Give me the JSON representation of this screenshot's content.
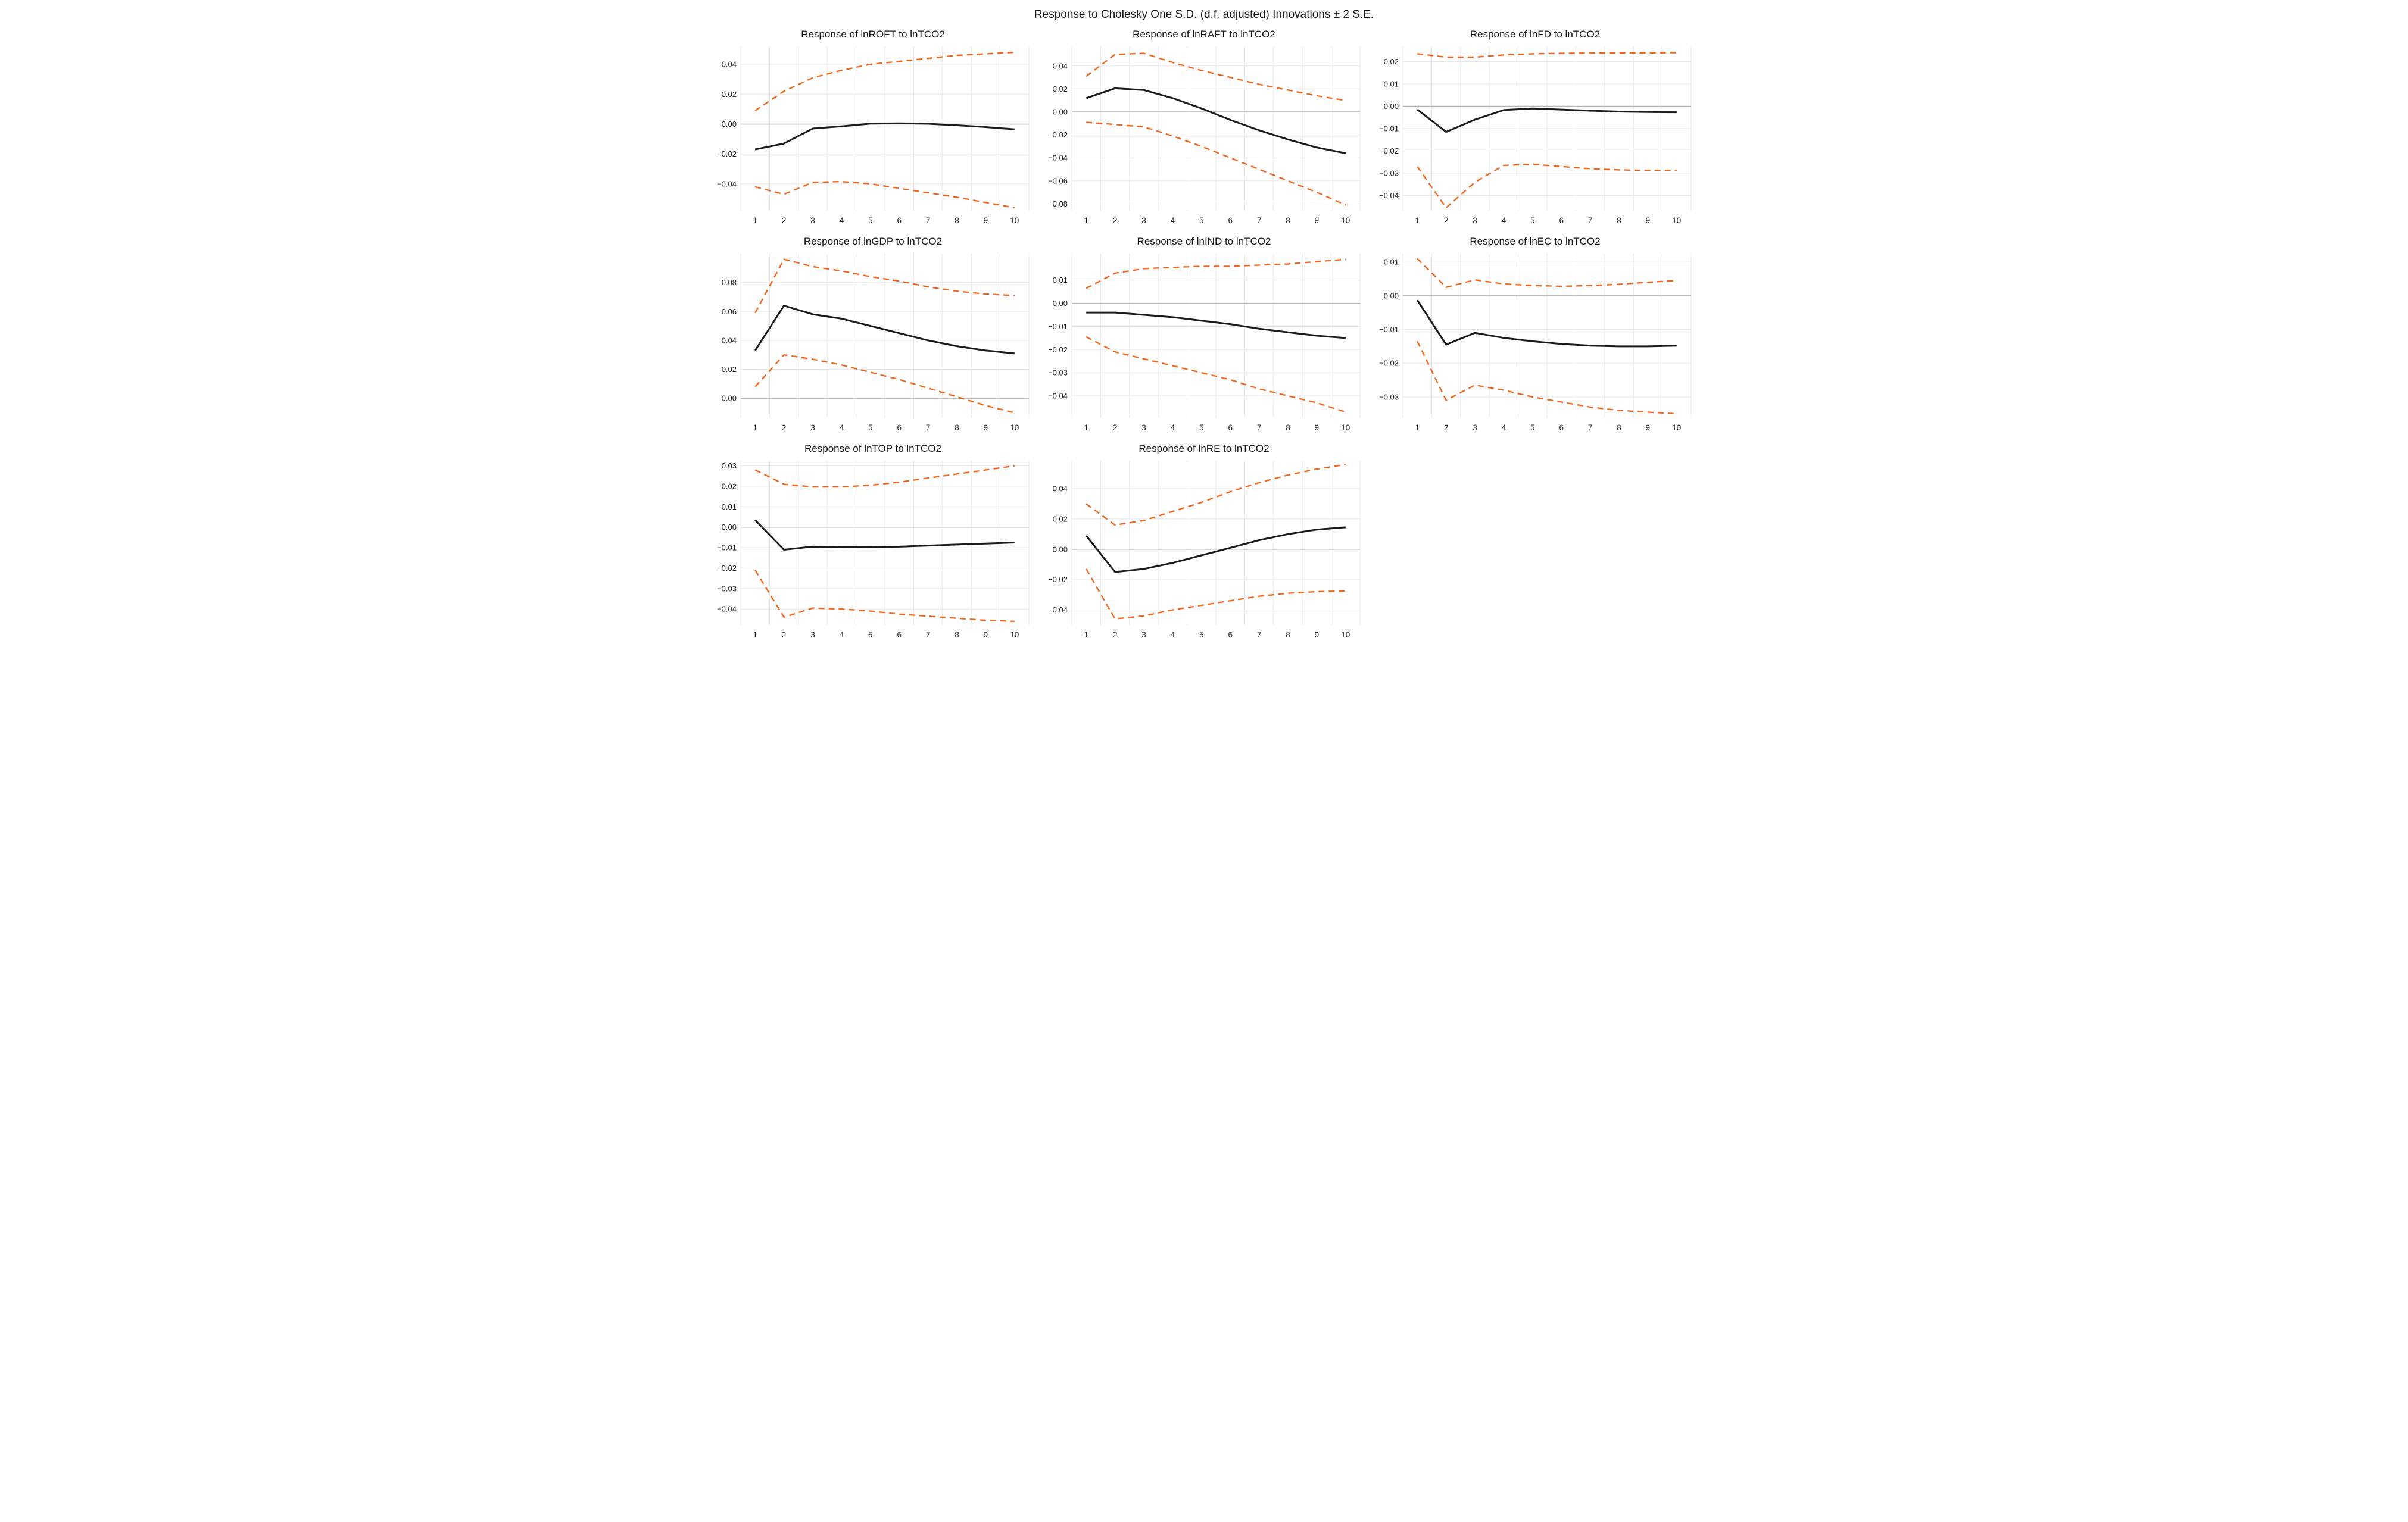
{
  "header": {
    "title": "Response to Cholesky One S.D. (d.f. adjusted) Innovations ± 2 S.E."
  },
  "style": {
    "response_color": "#1b1b1b",
    "band_color": "#f0661c",
    "grid_color": "#e8e8e8",
    "zero_color": "#b5b5b5",
    "background": "#ffffff",
    "text_color": "#1f1f1f"
  },
  "chart_data": [
    {
      "type": "line",
      "title": "Response of lnROFT to lnTCO2",
      "x": [
        1,
        2,
        3,
        4,
        5,
        6,
        7,
        8,
        9,
        10
      ],
      "xlabel": "",
      "ylabel": "",
      "yticks": [
        0.04,
        0.02,
        0.0,
        -0.02,
        -0.04
      ],
      "ylim": [
        -0.058,
        0.052
      ],
      "grid": true,
      "legend": "none",
      "series": [
        {
          "name": "upper_band",
          "style": "dashed",
          "values": [
            0.009,
            0.022,
            0.031,
            0.036,
            0.04,
            0.042,
            0.044,
            0.046,
            0.047,
            0.048
          ]
        },
        {
          "name": "lower_band",
          "style": "dashed",
          "values": [
            -0.042,
            -0.047,
            -0.039,
            -0.0385,
            -0.04,
            -0.043,
            -0.046,
            -0.049,
            -0.0525,
            -0.056
          ]
        },
        {
          "name": "response",
          "style": "solid",
          "values": [
            -0.017,
            -0.013,
            -0.003,
            -0.0015,
            0.0003,
            0.0005,
            0.0002,
            -0.0008,
            -0.002,
            -0.0035
          ]
        }
      ]
    },
    {
      "type": "line",
      "title": "Response of lnRAFT to lnTCO2",
      "x": [
        1,
        2,
        3,
        4,
        5,
        6,
        7,
        8,
        9,
        10
      ],
      "xlabel": "",
      "ylabel": "",
      "yticks": [
        0.04,
        0.02,
        0.0,
        -0.02,
        -0.04,
        -0.06,
        -0.08
      ],
      "ylim": [
        -0.086,
        0.057
      ],
      "grid": true,
      "legend": "none",
      "series": [
        {
          "name": "upper_band",
          "style": "dashed",
          "values": [
            0.031,
            0.05,
            0.051,
            0.043,
            0.036,
            0.03,
            0.024,
            0.019,
            0.014,
            0.01
          ]
        },
        {
          "name": "lower_band",
          "style": "dashed",
          "values": [
            -0.009,
            -0.011,
            -0.013,
            -0.021,
            -0.03,
            -0.04,
            -0.05,
            -0.06,
            -0.07,
            -0.081
          ]
        },
        {
          "name": "response",
          "style": "solid",
          "values": [
            0.012,
            0.0205,
            0.019,
            0.012,
            0.003,
            -0.007,
            -0.016,
            -0.024,
            -0.031,
            -0.036
          ]
        }
      ]
    },
    {
      "type": "line",
      "title": "Response of lnFD to lnTCO2",
      "x": [
        1,
        2,
        3,
        4,
        5,
        6,
        7,
        8,
        9,
        10
      ],
      "xlabel": "",
      "ylabel": "",
      "yticks": [
        0.02,
        0.01,
        0.0,
        -0.01,
        -0.02,
        -0.03,
        -0.04
      ],
      "ylim": [
        -0.0468,
        0.0268
      ],
      "grid": true,
      "legend": "none",
      "series": [
        {
          "name": "upper_band",
          "style": "dashed",
          "values": [
            0.0235,
            0.022,
            0.022,
            0.023,
            0.0235,
            0.0237,
            0.0238,
            0.0238,
            0.0239,
            0.024
          ]
        },
        {
          "name": "lower_band",
          "style": "dashed",
          "values": [
            -0.027,
            -0.0455,
            -0.034,
            -0.0265,
            -0.026,
            -0.027,
            -0.028,
            -0.0285,
            -0.0288,
            -0.0288
          ]
        },
        {
          "name": "response",
          "style": "solid",
          "values": [
            -0.0015,
            -0.0115,
            -0.006,
            -0.0017,
            -0.001,
            -0.0015,
            -0.002,
            -0.0024,
            -0.0026,
            -0.0027
          ]
        }
      ]
    },
    {
      "type": "line",
      "title": "Response of lnGDP to lnTCO2",
      "x": [
        1,
        2,
        3,
        4,
        5,
        6,
        7,
        8,
        9,
        10
      ],
      "xlabel": "",
      "ylabel": "",
      "yticks": [
        0.08,
        0.06,
        0.04,
        0.02,
        0.0
      ],
      "ylim": [
        -0.0135,
        0.1
      ],
      "grid": true,
      "legend": "none",
      "series": [
        {
          "name": "upper_band",
          "style": "dashed",
          "values": [
            0.059,
            0.096,
            0.091,
            0.088,
            0.084,
            0.081,
            0.077,
            0.074,
            0.072,
            0.071
          ]
        },
        {
          "name": "lower_band",
          "style": "dashed",
          "values": [
            0.008,
            0.03,
            0.027,
            0.023,
            0.018,
            0.013,
            0.007,
            0.001,
            -0.005,
            -0.01
          ]
        },
        {
          "name": "response",
          "style": "solid",
          "values": [
            0.033,
            0.064,
            0.058,
            0.055,
            0.05,
            0.045,
            0.04,
            0.036,
            0.033,
            0.031
          ]
        }
      ]
    },
    {
      "type": "line",
      "title": "Response of lnIND to  lnTCO2",
      "x": [
        1,
        2,
        3,
        4,
        5,
        6,
        7,
        8,
        9,
        10
      ],
      "xlabel": "",
      "ylabel": "",
      "yticks": [
        0.01,
        0.0,
        -0.01,
        -0.02,
        -0.03,
        -0.04
      ],
      "ylim": [
        -0.0495,
        0.0215
      ],
      "grid": true,
      "legend": "none",
      "series": [
        {
          "name": "upper_band",
          "style": "dashed",
          "values": [
            0.0065,
            0.013,
            0.015,
            0.0155,
            0.016,
            0.016,
            0.0165,
            0.017,
            0.018,
            0.019
          ]
        },
        {
          "name": "lower_band",
          "style": "dashed",
          "values": [
            -0.0145,
            -0.021,
            -0.024,
            -0.027,
            -0.03,
            -0.033,
            -0.037,
            -0.04,
            -0.043,
            -0.047
          ]
        },
        {
          "name": "response",
          "style": "solid",
          "values": [
            -0.004,
            -0.004,
            -0.005,
            -0.006,
            -0.0075,
            -0.009,
            -0.011,
            -0.0125,
            -0.014,
            -0.015
          ]
        }
      ]
    },
    {
      "type": "line",
      "title": "Response of lnEC to lnTCO2",
      "x": [
        1,
        2,
        3,
        4,
        5,
        6,
        7,
        8,
        9,
        10
      ],
      "xlabel": "",
      "ylabel": "",
      "yticks": [
        0.01,
        0.0,
        -0.01,
        -0.02,
        -0.03
      ],
      "ylim": [
        -0.0362,
        0.0125
      ],
      "grid": true,
      "legend": "none",
      "series": [
        {
          "name": "upper_band",
          "style": "dashed",
          "values": [
            0.011,
            0.0025,
            0.0047,
            0.0035,
            0.003,
            0.0028,
            0.003,
            0.0034,
            0.004,
            0.0045
          ]
        },
        {
          "name": "lower_band",
          "style": "dashed",
          "values": [
            -0.0135,
            -0.031,
            -0.0265,
            -0.028,
            -0.03,
            -0.0315,
            -0.033,
            -0.034,
            -0.0345,
            -0.035
          ]
        },
        {
          "name": "response",
          "style": "solid",
          "values": [
            -0.0013,
            -0.0145,
            -0.011,
            -0.0125,
            -0.0135,
            -0.0143,
            -0.0148,
            -0.015,
            -0.015,
            -0.0148
          ]
        }
      ]
    },
    {
      "type": "line",
      "title": "Response of lnTOP to lnTCO2",
      "x": [
        1,
        2,
        3,
        4,
        5,
        6,
        7,
        8,
        9,
        10
      ],
      "xlabel": "",
      "ylabel": "",
      "yticks": [
        0.03,
        0.02,
        0.01,
        0.0,
        -0.01,
        -0.02,
        -0.03,
        -0.04
      ],
      "ylim": [
        -0.0478,
        0.0325
      ],
      "grid": true,
      "legend": "none",
      "series": [
        {
          "name": "upper_band",
          "style": "dashed",
          "values": [
            0.028,
            0.021,
            0.0197,
            0.0197,
            0.0205,
            0.022,
            0.024,
            0.026,
            0.028,
            0.03
          ]
        },
        {
          "name": "lower_band",
          "style": "dashed",
          "values": [
            -0.021,
            -0.044,
            -0.0395,
            -0.04,
            -0.041,
            -0.0425,
            -0.0435,
            -0.0445,
            -0.0455,
            -0.046
          ]
        },
        {
          "name": "response",
          "style": "solid",
          "values": [
            0.0035,
            -0.011,
            -0.0095,
            -0.0098,
            -0.0097,
            -0.0095,
            -0.009,
            -0.0085,
            -0.008,
            -0.0075
          ]
        }
      ]
    },
    {
      "type": "line",
      "title": "Response of lnRE to lnTCO2",
      "x": [
        1,
        2,
        3,
        4,
        5,
        6,
        7,
        8,
        9,
        10
      ],
      "xlabel": "",
      "ylabel": "",
      "yticks": [
        0.04,
        0.02,
        0.0,
        -0.02,
        -0.04
      ],
      "ylim": [
        -0.05,
        0.0585
      ],
      "grid": true,
      "legend": "none",
      "series": [
        {
          "name": "upper_band",
          "style": "dashed",
          "values": [
            0.03,
            0.016,
            0.019,
            0.025,
            0.031,
            0.038,
            0.044,
            0.049,
            0.053,
            0.056
          ]
        },
        {
          "name": "lower_band",
          "style": "dashed",
          "values": [
            -0.013,
            -0.046,
            -0.044,
            -0.04,
            -0.037,
            -0.034,
            -0.031,
            -0.029,
            -0.028,
            -0.0275
          ]
        },
        {
          "name": "response",
          "style": "solid",
          "values": [
            0.009,
            -0.015,
            -0.013,
            -0.009,
            -0.004,
            0.001,
            0.006,
            0.01,
            0.013,
            0.0145
          ]
        }
      ]
    }
  ]
}
